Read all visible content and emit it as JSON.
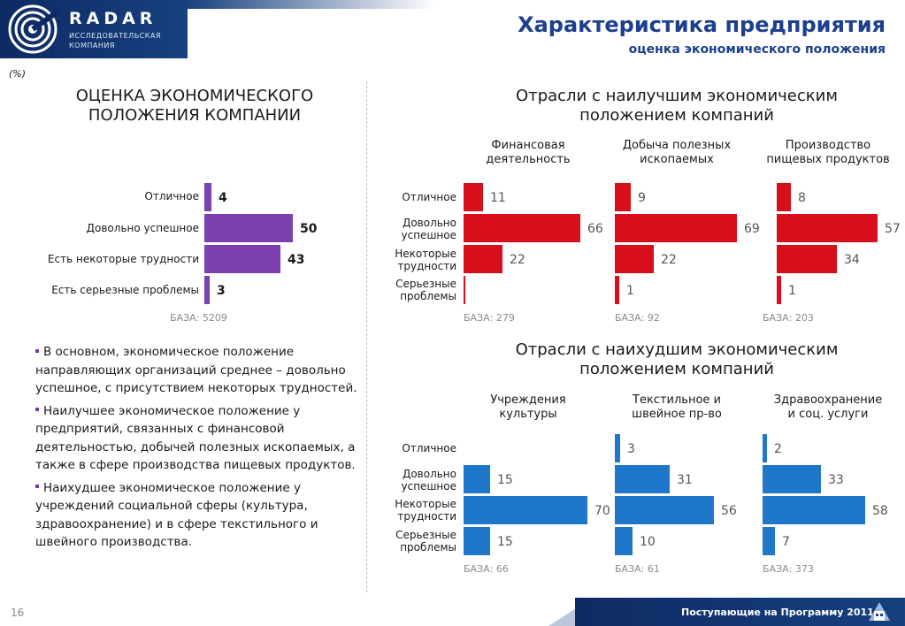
{
  "header": {
    "brand": "RADAR",
    "brand_sub_line1": "ИССЛЕДОВАТЕЛЬСКАЯ",
    "brand_sub_line2": "КОМПАНИЯ",
    "title": "Характеристика предприятия",
    "subtitle": "оценка экономического положения"
  },
  "unit_note": "(%)",
  "left_section": {
    "title_line1": "ОЦЕНКА ЭКОНОМИЧЕСКОГО",
    "title_line2": "ПОЛОЖЕНИЯ КОМПАНИИ"
  },
  "best_section": {
    "title_line1": "Отрасли  с наилучшим экономическим",
    "title_line2": "положением компаний"
  },
  "worst_section": {
    "title_line1": "Отрасли  с наихудшим экономическим",
    "title_line2": "положением компаний"
  },
  "bullets": [
    "В основном, экономическое положение направляющих организаций среднее – довольно успешное, с присутствием некоторых трудностей.",
    "Наилучшее экономическое положение у предприятий, связанных с финансовой деятельностью, добычей полезных ископаемых, а также в сфере производства пищевых продуктов.",
    "Наихудшее экономическое положение у учреждений социальной сферы (культура, здравоохранение) и в сфере текстильного и швейного производства."
  ],
  "footer": {
    "page": "16",
    "caption": "Поступающие на Программу 2011"
  },
  "colors": {
    "purple": "#7b3fb0",
    "red": "#d70f1b",
    "blue": "#1f77c9",
    "navy": "#1c3f8e"
  },
  "chart_data": [
    {
      "type": "bar",
      "id": "overall",
      "categories": [
        "Отличное",
        "Довольно успешное",
        "Есть некоторые трудности",
        "Есть серьезные проблемы"
      ],
      "values": [
        4,
        50,
        43,
        3
      ],
      "base": "БАЗА: 5209",
      "color": "#7b3fb0"
    },
    {
      "type": "bar",
      "id": "finance",
      "title_line1": "Финансовая",
      "title_line2": "деятельность",
      "categories": [
        "Отличное",
        "Довольно успешное",
        "Некоторые трудности",
        "Серьезные проблемы"
      ],
      "values": [
        11,
        66,
        22,
        0
      ],
      "base": "БАЗА: 279",
      "color": "#d70f1b"
    },
    {
      "type": "bar",
      "id": "mining",
      "title_line1": "Добыча полезных",
      "title_line2": "ископаемых",
      "categories": [
        "Отличное",
        "Довольно успешное",
        "Некоторые трудности",
        "Серьезные проблемы"
      ],
      "values": [
        9,
        69,
        22,
        1
      ],
      "base": "БАЗА: 92",
      "color": "#d70f1b"
    },
    {
      "type": "bar",
      "id": "food",
      "title_line1": "Производство",
      "title_line2": "пищевых продуктов",
      "categories": [
        "Отличное",
        "Довольно успешное",
        "Некоторые трудности",
        "Серьезные проблемы"
      ],
      "values": [
        8,
        57,
        34,
        1
      ],
      "base": "БАЗА: 203",
      "color": "#d70f1b"
    },
    {
      "type": "bar",
      "id": "culture",
      "title_line1": "Учреждения",
      "title_line2": "культуры",
      "categories": [
        "Отличное",
        "Довольно успешное",
        "Некоторые трудности",
        "Серьезные проблемы"
      ],
      "values": [
        0,
        15,
        70,
        15
      ],
      "base": "БАЗА: 66",
      "color": "#1f77c9"
    },
    {
      "type": "bar",
      "id": "textile",
      "title_line1": "Текстильное и",
      "title_line2": "швейное пр-во",
      "categories": [
        "Отличное",
        "Довольно успешное",
        "Некоторые трудности",
        "Серьезные проблемы"
      ],
      "values": [
        3,
        31,
        56,
        10
      ],
      "base": "БАЗА: 61",
      "color": "#1f77c9"
    },
    {
      "type": "bar",
      "id": "health",
      "title_line1": "Здравоохранение",
      "title_line2": "и соц. услуги",
      "categories": [
        "Отличное",
        "Довольно успешное",
        "Некоторые трудности",
        "Серьезные проблемы"
      ],
      "values": [
        2,
        33,
        58,
        7
      ],
      "base": "БАЗА: 373",
      "color": "#1f77c9"
    }
  ],
  "row_labels_short": {
    "excellent": "Отличное",
    "good_l1": "Довольно",
    "good_l2": "успешное",
    "diff_l1": "Некоторые",
    "diff_l2": "трудности",
    "prob_l1": "Серьезные",
    "prob_l2": "проблемы"
  }
}
